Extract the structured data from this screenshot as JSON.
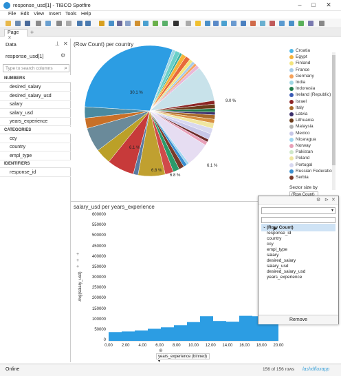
{
  "window": {
    "title": "response_usd[1] - TIBCO Spotfire"
  },
  "menu": [
    "File",
    "Edit",
    "View",
    "Insert",
    "Tools",
    "Help"
  ],
  "tabs": {
    "page": "Page",
    "add": "+"
  },
  "data_panel": {
    "title": "Data",
    "source": "response_usd[1]",
    "search_placeholder": "Type to search columns",
    "groups": [
      {
        "label": "NUMBERS",
        "items": [
          "desired_salary",
          "desired_salary_usd",
          "salary",
          "salary_usd",
          "years_experience"
        ]
      },
      {
        "label": "CATEGORIES",
        "items": [
          "ccy",
          "country",
          "empl_type"
        ]
      },
      {
        "label": "IDENTIFIERS",
        "items": [
          "response_id"
        ]
      }
    ]
  },
  "pie": {
    "title": "(Row Count) per country",
    "legend": [
      "Croatia",
      "Egypt",
      "Finland",
      "France",
      "Germany",
      "India",
      "Indonesia",
      "Ireland (Republic)",
      "Israel",
      "Italy",
      "Latvia",
      "Lithuania",
      "Malaysia",
      "Mexico",
      "Nicaragua",
      "Norway",
      "Pakistan",
      "Poland",
      "Portugal",
      "Russian Federation",
      "Serbia"
    ],
    "legend_colors": [
      "#4cb7e6",
      "#f5b33a",
      "#f3e57d",
      "#a6cbe8",
      "#f5a15a",
      "#9ed6e3",
      "#1f7a4a",
      "#3b5bb5",
      "#8c2525",
      "#a86a2a",
      "#3b2f6b",
      "#6b3b1a",
      "#b0b0b0",
      "#c7c7e8",
      "#9fd6f0",
      "#e8a0b8",
      "#cfe8c8",
      "#f0e6a0",
      "#d8d8f0",
      "#3a8fd0",
      "#7a3a2a"
    ],
    "sector_size_label": "Sector size by",
    "sector_size_value": "(Row Count)",
    "labels": [
      "30.1 %",
      "9.0 %",
      "6.1 %",
      "6.8 %",
      "6.8 %",
      "6.1 %"
    ]
  },
  "bar": {
    "title": "salary_usd per years_experience",
    "ylabel": "Avg(salary_usd)",
    "xlabel": "years_experience (binned)"
  },
  "chart_data": {
    "type": "bar",
    "title": "salary_usd per years_experience",
    "xlabel": "years_experience (binned)",
    "ylabel": "Avg(salary_usd)",
    "ylim": [
      0,
      600000
    ],
    "yticks": [
      "0",
      "50000",
      "100000",
      "150000",
      "200000",
      "250000",
      "300000",
      "350000",
      "400000",
      "450000",
      "500000",
      "550000",
      "600000"
    ],
    "xticks": [
      "0.00",
      "2.00",
      "4.00",
      "6.00",
      "8.00",
      "10.00",
      "12.00",
      "14.00",
      "16.00",
      "18.00",
      "20.00"
    ],
    "values": [
      42000,
      45000,
      50000,
      58000,
      65000,
      75000,
      90000,
      118000,
      95000,
      92000,
      120000,
      118000,
      100000
    ]
  },
  "popup": {
    "items": [
      "(Row Count)",
      "response_id",
      "country",
      "ccy",
      "empl_type",
      "salary",
      "desired_salary",
      "salary_usd",
      "desired_salary_usd",
      "years_experience"
    ],
    "remove": "Remove"
  },
  "status": {
    "left": "Online",
    "rows": "156 of 156 rows",
    "watermark": "lashdfluxapp"
  }
}
